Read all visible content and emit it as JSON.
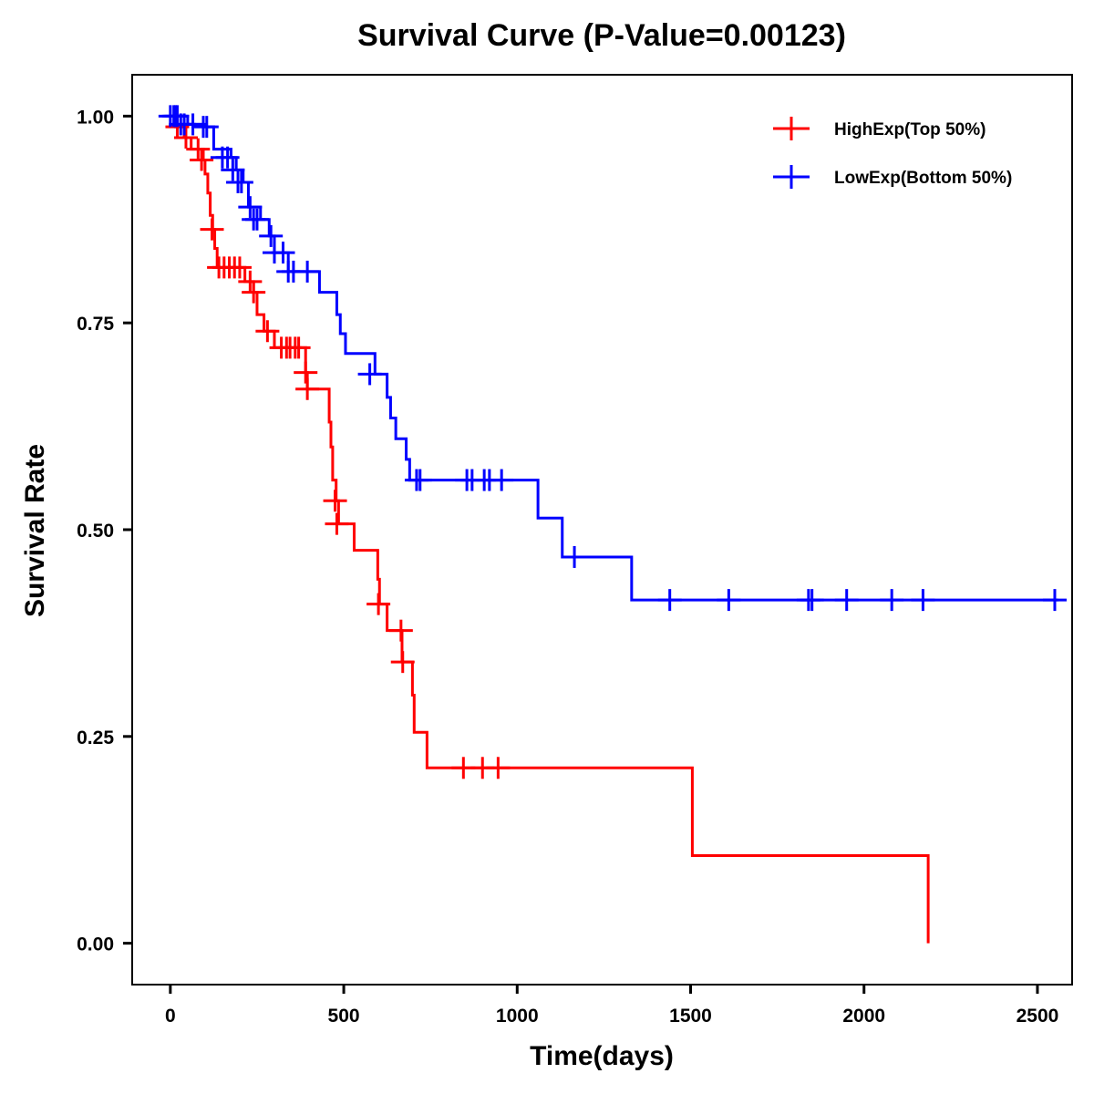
{
  "chart_data": {
    "type": "line",
    "subtype": "kaplan-meier-step",
    "title": "Survival Curve (P-Value=0.00123)",
    "xlabel": "Time(days)",
    "ylabel": "Survival Rate",
    "xlim": [
      -110,
      2600
    ],
    "ylim": [
      -0.05,
      1.05
    ],
    "xticks": [
      0,
      500,
      1000,
      1500,
      2000,
      2500
    ],
    "xtick_labels": [
      "0",
      "500",
      "1000",
      "1500",
      "2000",
      "2500"
    ],
    "yticks": [
      0,
      0.25,
      0.5,
      0.75,
      1.0
    ],
    "ytick_labels": [
      "0.00",
      "0.25",
      "0.50",
      "0.75",
      "1.00"
    ],
    "grid": false,
    "legend_position": "top-right",
    "series": [
      {
        "name": "HighExp(Top 50%)",
        "color": "#ff0000",
        "steps": [
          [
            0,
            1.0
          ],
          [
            15,
            0.987
          ],
          [
            40,
            0.974
          ],
          [
            60,
            0.96
          ],
          [
            95,
            0.947
          ],
          [
            100,
            0.93
          ],
          [
            108,
            0.907
          ],
          [
            115,
            0.88
          ],
          [
            122,
            0.863
          ],
          [
            128,
            0.84
          ],
          [
            135,
            0.817
          ],
          [
            215,
            0.8
          ],
          [
            240,
            0.787
          ],
          [
            250,
            0.76
          ],
          [
            270,
            0.74
          ],
          [
            300,
            0.72
          ],
          [
            390,
            0.69
          ],
          [
            395,
            0.67
          ],
          [
            458,
            0.63
          ],
          [
            463,
            0.6
          ],
          [
            468,
            0.56
          ],
          [
            478,
            0.535
          ],
          [
            485,
            0.507
          ],
          [
            530,
            0.475
          ],
          [
            598,
            0.44
          ],
          [
            603,
            0.41
          ],
          [
            625,
            0.378
          ],
          [
            668,
            0.34
          ],
          [
            698,
            0.3
          ],
          [
            703,
            0.255
          ],
          [
            740,
            0.212
          ],
          [
            1505,
            0.106
          ],
          [
            2185,
            0.0
          ]
        ],
        "end_x": 2185,
        "censored": [
          [
            20,
            0.987
          ],
          [
            45,
            0.974
          ],
          [
            80,
            0.96
          ],
          [
            90,
            0.947
          ],
          [
            120,
            0.863
          ],
          [
            140,
            0.817
          ],
          [
            155,
            0.817
          ],
          [
            170,
            0.817
          ],
          [
            185,
            0.817
          ],
          [
            200,
            0.817
          ],
          [
            230,
            0.8
          ],
          [
            240,
            0.787
          ],
          [
            280,
            0.74
          ],
          [
            320,
            0.72
          ],
          [
            335,
            0.72
          ],
          [
            345,
            0.72
          ],
          [
            360,
            0.72
          ],
          [
            370,
            0.72
          ],
          [
            390,
            0.69
          ],
          [
            395,
            0.67
          ],
          [
            475,
            0.535
          ],
          [
            480,
            0.507
          ],
          [
            600,
            0.41
          ],
          [
            665,
            0.378
          ],
          [
            670,
            0.34
          ],
          [
            845,
            0.212
          ],
          [
            900,
            0.212
          ],
          [
            945,
            0.212
          ]
        ]
      },
      {
        "name": "LowExp(Bottom 50%)",
        "color": "#0000ff",
        "steps": [
          [
            0,
            1.0
          ],
          [
            50,
            0.99
          ],
          [
            100,
            0.987
          ],
          [
            125,
            0.96
          ],
          [
            175,
            0.95
          ],
          [
            190,
            0.935
          ],
          [
            210,
            0.92
          ],
          [
            225,
            0.89
          ],
          [
            260,
            0.875
          ],
          [
            285,
            0.855
          ],
          [
            300,
            0.835
          ],
          [
            340,
            0.812
          ],
          [
            430,
            0.787
          ],
          [
            480,
            0.76
          ],
          [
            490,
            0.737
          ],
          [
            505,
            0.713
          ],
          [
            590,
            0.688
          ],
          [
            625,
            0.66
          ],
          [
            635,
            0.635
          ],
          [
            650,
            0.61
          ],
          [
            680,
            0.585
          ],
          [
            690,
            0.56
          ],
          [
            1060,
            0.514
          ],
          [
            1130,
            0.467
          ],
          [
            1330,
            0.415
          ]
        ],
        "end_x": 2560,
        "censored": [
          [
            0,
            1.0
          ],
          [
            10,
            1.0
          ],
          [
            15,
            1.0
          ],
          [
            20,
            1.0
          ],
          [
            30,
            0.99
          ],
          [
            40,
            0.99
          ],
          [
            65,
            0.99
          ],
          [
            95,
            0.987
          ],
          [
            105,
            0.987
          ],
          [
            150,
            0.95
          ],
          [
            165,
            0.95
          ],
          [
            180,
            0.935
          ],
          [
            195,
            0.92
          ],
          [
            205,
            0.92
          ],
          [
            230,
            0.89
          ],
          [
            240,
            0.875
          ],
          [
            250,
            0.875
          ],
          [
            290,
            0.855
          ],
          [
            300,
            0.835
          ],
          [
            325,
            0.835
          ],
          [
            340,
            0.812
          ],
          [
            355,
            0.812
          ],
          [
            395,
            0.812
          ],
          [
            575,
            0.688
          ],
          [
            710,
            0.56
          ],
          [
            720,
            0.56
          ],
          [
            855,
            0.56
          ],
          [
            870,
            0.56
          ],
          [
            905,
            0.56
          ],
          [
            920,
            0.56
          ],
          [
            955,
            0.56
          ],
          [
            1165,
            0.467
          ],
          [
            1440,
            0.415
          ],
          [
            1610,
            0.415
          ],
          [
            1840,
            0.415
          ],
          [
            1850,
            0.415
          ],
          [
            1950,
            0.415
          ],
          [
            2080,
            0.415
          ],
          [
            2170,
            0.415
          ],
          [
            2550,
            0.415
          ]
        ]
      }
    ]
  }
}
